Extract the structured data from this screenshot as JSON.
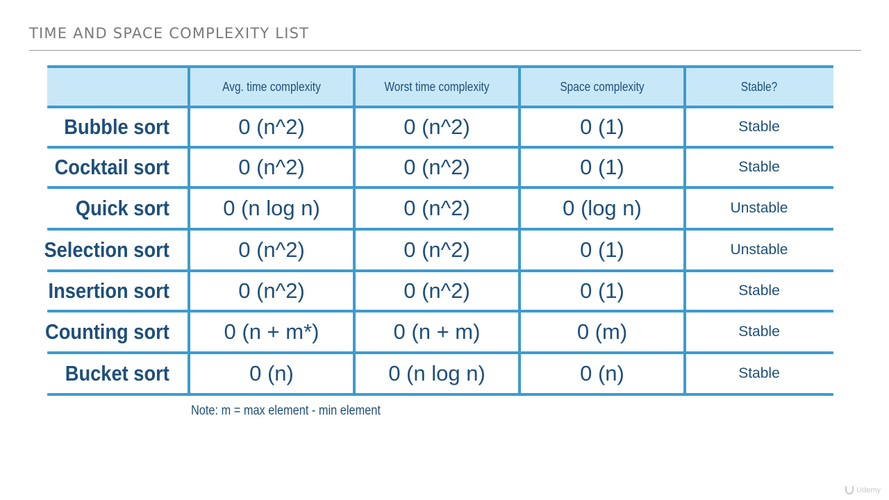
{
  "slide": {
    "title": "TIME AND SPACE COMPLEXITY LIST"
  },
  "table": {
    "headers": [
      "",
      "Avg. time complexity",
      "Worst time complexity",
      "Space complexity",
      "Stable?"
    ],
    "rows": [
      {
        "name": "Bubble sort",
        "avg": "0 (n^2)",
        "worst": "0 (n^2)",
        "space": "0 (1)",
        "stable": "Stable"
      },
      {
        "name": "Cocktail sort",
        "avg": "0 (n^2)",
        "worst": "0 (n^2)",
        "space": "0 (1)",
        "stable": "Stable"
      },
      {
        "name": "Quick sort",
        "avg": "0 (n log n)",
        "worst": "0 (n^2)",
        "space": "0 (log n)",
        "stable": "Unstable"
      },
      {
        "name": "Selection sort",
        "avg": "0 (n^2)",
        "worst": "0 (n^2)",
        "space": "0 (1)",
        "stable": "Unstable"
      },
      {
        "name": "Insertion sort",
        "avg": "0 (n^2)",
        "worst": "0 (n^2)",
        "space": "0 (1)",
        "stable": "Stable"
      },
      {
        "name": "Counting sort",
        "avg": "0 (n + m*)",
        "worst": "0 (n + m)",
        "space": "0 (m)",
        "stable": "Stable"
      },
      {
        "name": "Bucket sort",
        "avg": "0 (n)",
        "worst": "0 (n log n)",
        "space": "0 (n)",
        "stable": "Stable"
      }
    ]
  },
  "note": "Note: m  = max element - min element",
  "watermark": "Udemy",
  "colors": {
    "grid_line": "#3e9bcf",
    "header_fill": "#c8e8f7",
    "text": "#1e4f7a",
    "title": "#7a7a7a"
  }
}
